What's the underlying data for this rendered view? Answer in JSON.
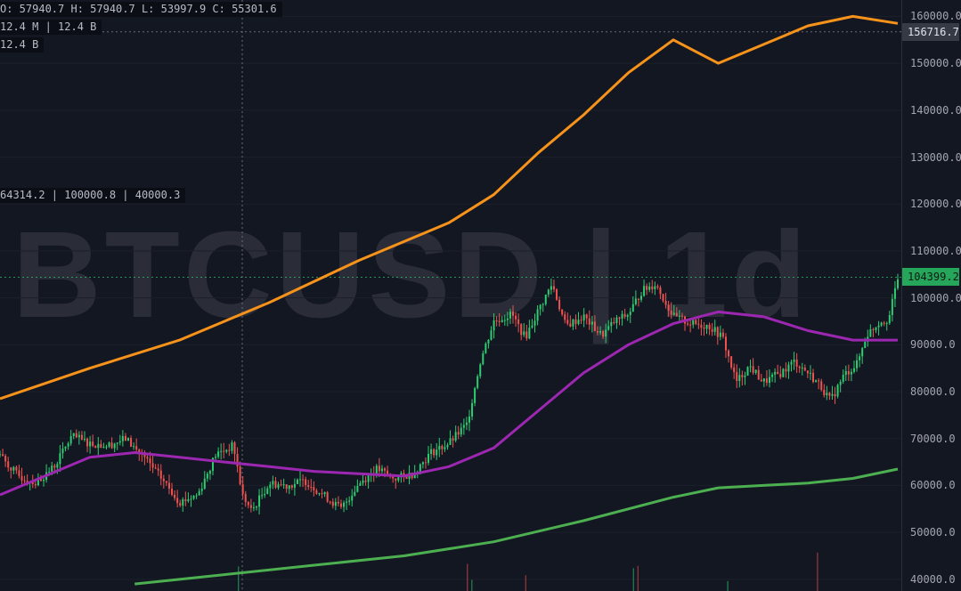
{
  "symbol": "BTCUSD",
  "interval": "1d",
  "watermark": "BTCUSD | 1d",
  "legend": {
    "ohlc": "O: 57940.7  H: 57940.7  L: 53997.9  C: 55301.6",
    "volume_row": "12.4 M | 12.4 B",
    "volume_row2": "12.4 B",
    "ma_row": "64314.2 | 100000.8 | 40000.3"
  },
  "crosshair_price_label": "156716.7",
  "last_price_label": "104399.2",
  "colors": {
    "background": "#131722",
    "up": "#2ecc71",
    "down": "#ef5350",
    "ma_orange": "#f7931a",
    "ma_purple": "#9c27b0",
    "ma_green": "#4caf50",
    "grid": "#232632"
  },
  "chart_data": {
    "type": "candlestick",
    "y_ticks": [
      "160000.0",
      "150000.0",
      "140000.0",
      "130000.0",
      "120000.0",
      "110000.0",
      "100000.0",
      "90000.0",
      "80000.0",
      "70000.0",
      "60000.0",
      "50000.0",
      "40000.0"
    ],
    "ylim": [
      37500,
      163500
    ],
    "crosshair": {
      "price": 156716.7
    },
    "last_price": 104399.2,
    "close_path": [
      [
        0,
        66500
      ],
      [
        0.02,
        62000
      ],
      [
        0.04,
        60500
      ],
      [
        0.06,
        64000
      ],
      [
        0.08,
        70500
      ],
      [
        0.1,
        69000
      ],
      [
        0.12,
        68500
      ],
      [
        0.14,
        70000
      ],
      [
        0.16,
        66000
      ],
      [
        0.18,
        61500
      ],
      [
        0.2,
        56500
      ],
      [
        0.22,
        58000
      ],
      [
        0.24,
        66500
      ],
      [
        0.26,
        68500
      ],
      [
        0.27,
        58000
      ],
      [
        0.28,
        54500
      ],
      [
        0.3,
        60500
      ],
      [
        0.32,
        60000
      ],
      [
        0.34,
        61000
      ],
      [
        0.36,
        58000
      ],
      [
        0.38,
        55000
      ],
      [
        0.4,
        60500
      ],
      [
        0.42,
        63500
      ],
      [
        0.44,
        61500
      ],
      [
        0.46,
        62500
      ],
      [
        0.48,
        67000
      ],
      [
        0.5,
        69000
      ],
      [
        0.52,
        73000
      ],
      [
        0.535,
        86500
      ],
      [
        0.55,
        95000
      ],
      [
        0.57,
        96500
      ],
      [
        0.585,
        91500
      ],
      [
        0.6,
        97500
      ],
      [
        0.615,
        103000
      ],
      [
        0.63,
        94000
      ],
      [
        0.65,
        96000
      ],
      [
        0.67,
        92000
      ],
      [
        0.685,
        95000
      ],
      [
        0.7,
        96500
      ],
      [
        0.715,
        101500
      ],
      [
        0.73,
        103000
      ],
      [
        0.75,
        96000
      ],
      [
        0.77,
        94500
      ],
      [
        0.79,
        94000
      ],
      [
        0.805,
        91500
      ],
      [
        0.82,
        82000
      ],
      [
        0.835,
        85500
      ],
      [
        0.85,
        82000
      ],
      [
        0.87,
        84000
      ],
      [
        0.885,
        86500
      ],
      [
        0.9,
        84000
      ],
      [
        0.915,
        81000
      ],
      [
        0.925,
        78000
      ],
      [
        0.94,
        83500
      ],
      [
        0.955,
        86000
      ],
      [
        0.965,
        92000
      ],
      [
        0.98,
        95000
      ],
      [
        0.99,
        95500
      ],
      [
        1.0,
        104399
      ]
    ],
    "series": [
      {
        "name": "",
        "color": "#f7931a",
        "points": [
          [
            0,
            78500
          ],
          [
            0.1,
            85000
          ],
          [
            0.2,
            91000
          ],
          [
            0.3,
            99000
          ],
          [
            0.4,
            108000
          ],
          [
            0.5,
            116000
          ],
          [
            0.55,
            122000
          ],
          [
            0.6,
            131000
          ],
          [
            0.65,
            139000
          ],
          [
            0.7,
            148000
          ],
          [
            0.75,
            155000
          ],
          [
            0.8,
            150000
          ],
          [
            0.85,
            154000
          ],
          [
            0.9,
            158000
          ],
          [
            0.95,
            160000
          ],
          [
            1.0,
            158500
          ]
        ]
      },
      {
        "name": "",
        "color": "#9c27b0",
        "points": [
          [
            0,
            58000
          ],
          [
            0.05,
            62000
          ],
          [
            0.1,
            66000
          ],
          [
            0.15,
            67000
          ],
          [
            0.2,
            66000
          ],
          [
            0.25,
            65000
          ],
          [
            0.3,
            64000
          ],
          [
            0.35,
            63000
          ],
          [
            0.4,
            62500
          ],
          [
            0.45,
            62000
          ],
          [
            0.5,
            64000
          ],
          [
            0.55,
            68000
          ],
          [
            0.6,
            76000
          ],
          [
            0.65,
            84000
          ],
          [
            0.7,
            90000
          ],
          [
            0.75,
            94500
          ],
          [
            0.8,
            97000
          ],
          [
            0.85,
            96000
          ],
          [
            0.9,
            93000
          ],
          [
            0.95,
            91000
          ],
          [
            1.0,
            91000
          ]
        ]
      },
      {
        "name": "",
        "color": "#4caf50",
        "points": [
          [
            0.15,
            39000
          ],
          [
            0.25,
            41000
          ],
          [
            0.35,
            43000
          ],
          [
            0.45,
            45000
          ],
          [
            0.55,
            48000
          ],
          [
            0.65,
            52500
          ],
          [
            0.75,
            57500
          ],
          [
            0.8,
            59500
          ],
          [
            0.85,
            60000
          ],
          [
            0.9,
            60500
          ],
          [
            0.95,
            61500
          ],
          [
            1.0,
            63500
          ]
        ]
      }
    ]
  }
}
